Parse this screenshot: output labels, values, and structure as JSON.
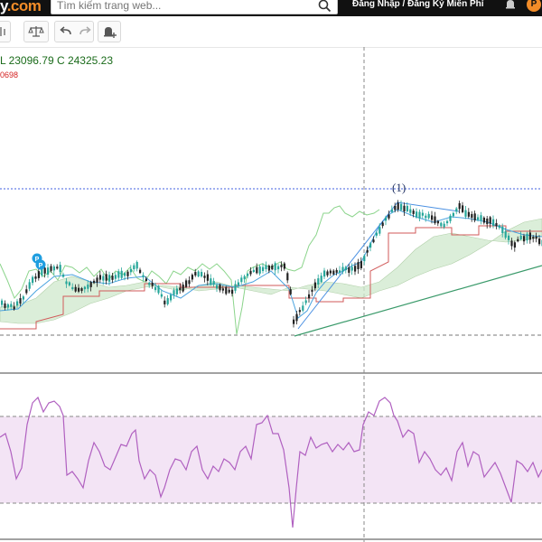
{
  "header": {
    "logo_text": "y",
    "logo_suffix": ".com",
    "search_placeholder": "Tìm kiếm trang web...",
    "login_text": "Đăng Nhập / Đăng Ký Miễn Phí",
    "brand_icon_letter": "P",
    "icons": [
      "search-icon",
      "bell-icon"
    ],
    "accent_color": "#f28c28"
  },
  "toolbar": {
    "buttons": [
      "bar-chart-icon",
      "scale-icon",
      "undo-icon",
      "redo-icon",
      "alert-add-icon"
    ]
  },
  "legend": {
    "ohlc_text": "L 23096.79   C 24325.23",
    "indicator_value": "0698"
  },
  "chart_data": [
    {
      "type": "candlestick",
      "indicators": [
        "ichimoku-cloud",
        "trend-lines",
        "pivot-markers"
      ],
      "annotation": "(1)",
      "pivot_marker_letters": [
        "P",
        "P"
      ],
      "colors": {
        "up": "#26a69a",
        "down": "#222222",
        "cloud": "#cfe8cc",
        "lagging": "#8bd48b",
        "base": "#d15a5a",
        "conversion": "#4aa3df",
        "trendline": "#3a9a6a",
        "annotation_line": "#4a90e2"
      },
      "grid": false
    },
    {
      "type": "line",
      "indicator": "oscillator",
      "band_color": "#f3e4f5",
      "line_color": "#b060c0",
      "grid": false
    }
  ]
}
